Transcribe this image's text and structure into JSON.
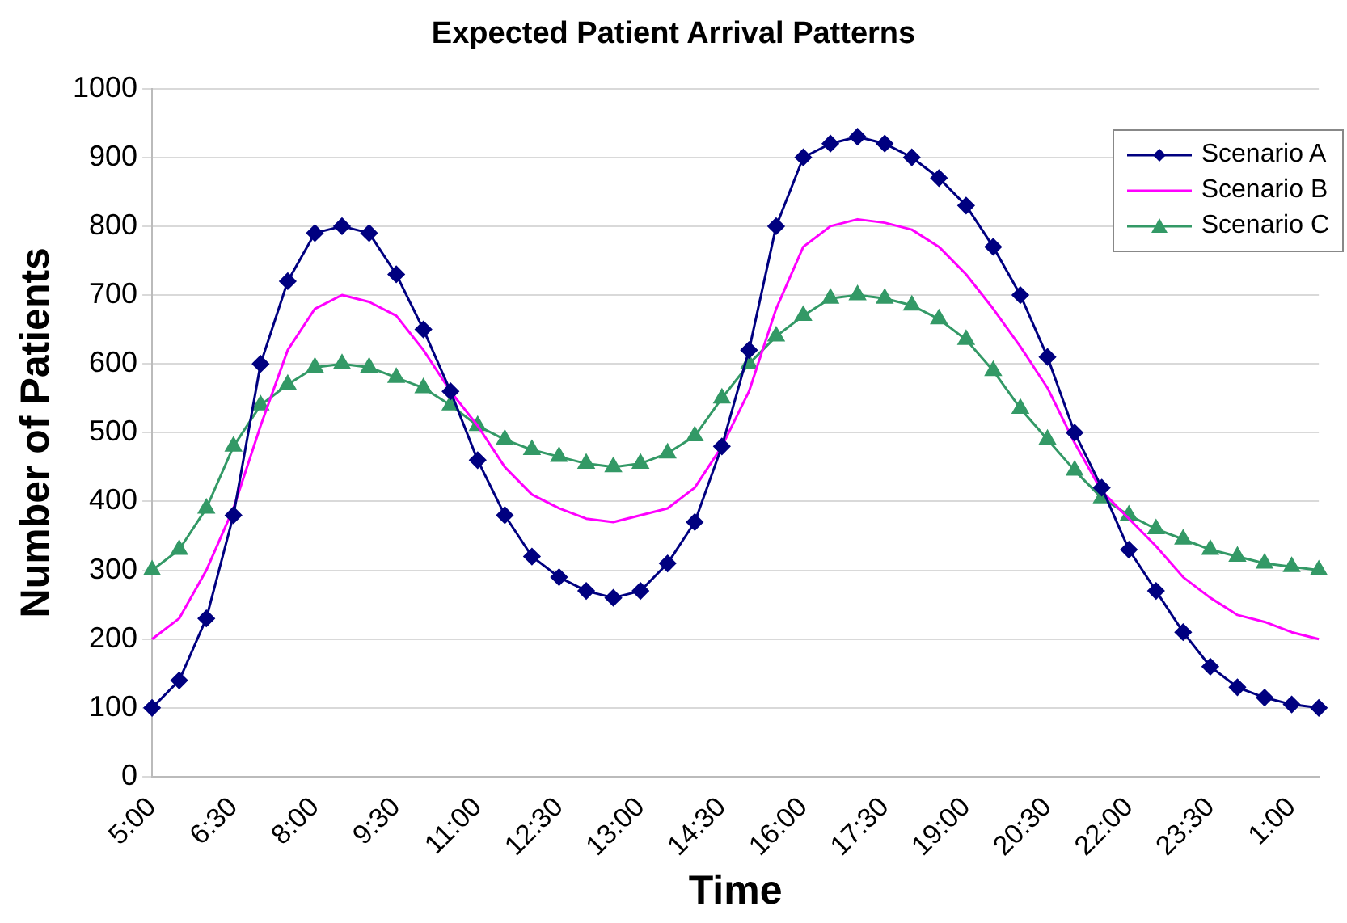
{
  "chart_data": {
    "type": "line",
    "title": "Expected Patient Arrival Patterns",
    "xlabel": "Time",
    "ylabel": "Number of Patients",
    "categories": [
      "5:00",
      null,
      null,
      "6:30",
      null,
      null,
      "8:00",
      null,
      null,
      "9:30",
      null,
      null,
      "11:00",
      null,
      null,
      "12:30",
      null,
      null,
      "13:00",
      null,
      null,
      "14:30",
      null,
      null,
      "16:00",
      null,
      null,
      "17:30",
      null,
      null,
      "19:00",
      null,
      null,
      "20:30",
      null,
      null,
      "22:00",
      null,
      null,
      "23:30",
      null,
      null,
      "1:00",
      null
    ],
    "series": [
      {
        "name": "Scenario A",
        "color": "#000080",
        "marker": "diamond",
        "values": [
          100,
          140,
          230,
          380,
          600,
          720,
          790,
          800,
          790,
          730,
          650,
          560,
          460,
          380,
          320,
          290,
          270,
          260,
          270,
          310,
          370,
          480,
          620,
          800,
          900,
          920,
          930,
          920,
          900,
          870,
          830,
          770,
          700,
          610,
          500,
          420,
          330,
          270,
          210,
          160,
          130,
          115,
          105,
          100
        ]
      },
      {
        "name": "Scenario B",
        "color": "#ff00ff",
        "marker": "none",
        "values": [
          200,
          230,
          300,
          390,
          510,
          620,
          680,
          700,
          690,
          670,
          620,
          560,
          510,
          450,
          410,
          390,
          375,
          370,
          380,
          390,
          420,
          480,
          560,
          680,
          770,
          800,
          810,
          805,
          795,
          770,
          730,
          680,
          625,
          565,
          485,
          415,
          375,
          335,
          290,
          260,
          235,
          225,
          210,
          200
        ]
      },
      {
        "name": "Scenario C",
        "color": "#339966",
        "marker": "triangle",
        "values": [
          300,
          330,
          390,
          480,
          540,
          570,
          595,
          600,
          595,
          580,
          565,
          540,
          510,
          490,
          475,
          465,
          455,
          450,
          455,
          470,
          495,
          550,
          600,
          640,
          670,
          695,
          700,
          695,
          685,
          665,
          635,
          590,
          535,
          490,
          445,
          405,
          380,
          360,
          345,
          330,
          320,
          310,
          305,
          300
        ]
      }
    ],
    "ylim": [
      0,
      1000
    ],
    "yticks": [
      0,
      100,
      200,
      300,
      400,
      500,
      600,
      700,
      800,
      900,
      1000
    ],
    "grid": "y",
    "legend": "top right"
  }
}
